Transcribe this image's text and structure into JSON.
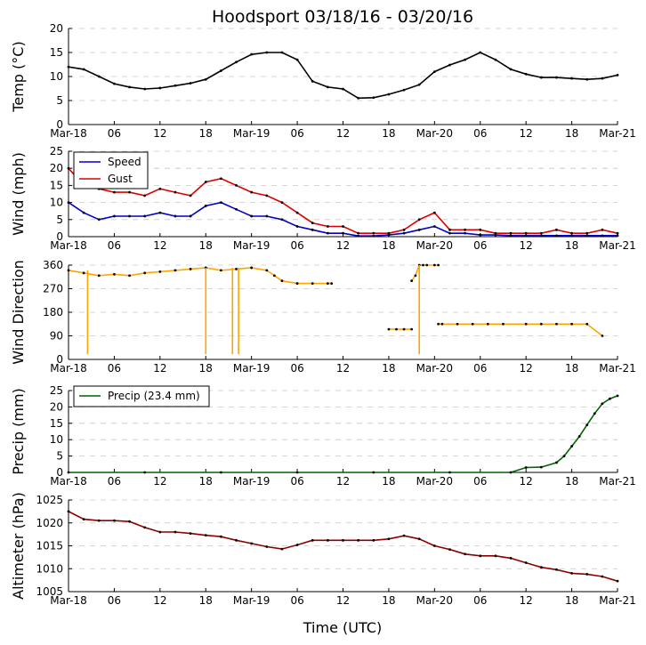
{
  "title": "Hoodsport 03/18/16 - 03/20/16",
  "xlabel": "Time (UTC)",
  "x_tick_labels": [
    "Mar-18",
    "06",
    "12",
    "18",
    "Mar-19",
    "06",
    "12",
    "18",
    "Mar-20",
    "06",
    "12",
    "18",
    "Mar-21"
  ],
  "chart_data": [
    {
      "type": "line",
      "name": "temp",
      "ylabel": "Temp (°C)",
      "ylim": [
        0,
        20
      ],
      "yticks": [
        0,
        5,
        10,
        15,
        20
      ],
      "color": "#000000",
      "x_hours": [
        0,
        2,
        4,
        6,
        8,
        10,
        12,
        14,
        16,
        18,
        20,
        22,
        24,
        26,
        28,
        30,
        32,
        34,
        36,
        38,
        40,
        42,
        44,
        46,
        48,
        50,
        52,
        54,
        56,
        58,
        60,
        62,
        64,
        66,
        68,
        70,
        72
      ],
      "series": [
        {
          "name": "Temp",
          "values": [
            12,
            11.5,
            10,
            8.5,
            7.8,
            7.4,
            7.6,
            8.1,
            8.6,
            9.4,
            11.2,
            13,
            14.6,
            15,
            15,
            13.5,
            9,
            7.8,
            7.4,
            5.5,
            5.6,
            6.3,
            7.2,
            8.3,
            11,
            12.4,
            13.5,
            15,
            13.5,
            11.5,
            10.5,
            9.8,
            9.8,
            9.6,
            9.4,
            9.6,
            10.3
          ]
        }
      ]
    },
    {
      "type": "line",
      "name": "wind",
      "ylabel": "Wind (mph)",
      "ylim": [
        0,
        25
      ],
      "yticks": [
        0,
        5,
        10,
        15,
        20,
        25
      ],
      "x_hours": [
        0,
        2,
        4,
        6,
        8,
        10,
        12,
        14,
        16,
        18,
        20,
        22,
        24,
        26,
        28,
        30,
        32,
        34,
        36,
        38,
        40,
        42,
        44,
        46,
        48,
        50,
        52,
        54,
        56,
        58,
        60,
        62,
        64,
        66,
        68,
        70,
        72
      ],
      "series": [
        {
          "name": "Speed",
          "color": "#0000cc",
          "values": [
            10,
            7,
            5,
            6,
            6,
            6,
            7,
            6,
            6,
            9,
            10,
            8,
            6,
            6,
            5,
            3,
            2,
            1,
            1,
            0.2,
            0.2,
            0.5,
            1,
            2,
            3,
            1,
            1,
            0.5,
            0.5,
            0.3,
            0.3,
            0.3,
            0.3,
            0.3,
            0.3,
            0.3,
            0.3
          ]
        },
        {
          "name": "Gust",
          "color": "#dd0000",
          "values": [
            20,
            15,
            14,
            13,
            13,
            12,
            14,
            13,
            12,
            16,
            17,
            15,
            13,
            12,
            10,
            7,
            4,
            3,
            3,
            1,
            1,
            1,
            2,
            5,
            7,
            2,
            2,
            2,
            1,
            1,
            1,
            1,
            2,
            1,
            1,
            2,
            1
          ]
        }
      ]
    },
    {
      "type": "line",
      "name": "wind_direction",
      "ylabel": "Wind Direction",
      "ylim": [
        0,
        360
      ],
      "yticks": [
        0,
        90,
        180,
        270,
        360
      ],
      "color": "#ffa500",
      "segments": [
        {
          "x": [
            0,
            2,
            4,
            6,
            8,
            10,
            12,
            14,
            16,
            18,
            20,
            22,
            24,
            26,
            27,
            28,
            30
          ],
          "y": [
            340,
            330,
            320,
            325,
            320,
            330,
            335,
            340,
            345,
            350,
            340,
            345,
            350,
            340,
            320,
            300,
            290
          ]
        },
        {
          "x": [
            30,
            32,
            34,
            34.5
          ],
          "y": [
            290,
            290,
            290,
            290
          ]
        },
        {
          "x": [
            42,
            43,
            44,
            45
          ],
          "y": [
            115,
            115,
            115,
            115
          ]
        },
        {
          "x": [
            45,
            45.5,
            46,
            46.5,
            47,
            48,
            48.5
          ],
          "y": [
            300,
            320,
            360,
            360,
            360,
            360,
            360
          ]
        },
        {
          "x": [
            48.5,
            49,
            51,
            53,
            55,
            57,
            60,
            62,
            64,
            66,
            68,
            70
          ],
          "y": [
            135,
            135,
            135,
            135,
            135,
            135,
            135,
            135,
            135,
            135,
            135,
            90
          ]
        }
      ],
      "spikes": [
        {
          "x": 2.5,
          "from": 340,
          "to": 20
        },
        {
          "x": 18,
          "from": 350,
          "to": 20
        },
        {
          "x": 21.5,
          "from": 350,
          "to": 20
        },
        {
          "x": 22.3,
          "from": 350,
          "to": 20
        },
        {
          "x": 46,
          "from": 360,
          "to": 20
        }
      ]
    },
    {
      "type": "line",
      "name": "precip",
      "ylabel": "Precip (mm)",
      "ylim": [
        0,
        25
      ],
      "yticks": [
        0,
        5,
        10,
        15,
        20,
        25
      ],
      "color": "#006400",
      "x_hours": [
        0,
        10,
        20,
        30,
        40,
        50,
        58,
        60,
        62,
        64,
        65,
        66,
        67,
        68,
        69,
        70,
        71,
        72
      ],
      "series": [
        {
          "name": "Precip (23.4 mm)",
          "values": [
            0,
            0,
            0,
            0,
            0,
            0,
            0,
            1.5,
            1.6,
            3,
            5,
            8,
            11,
            14.5,
            18,
            21,
            22.5,
            23.4
          ]
        }
      ]
    },
    {
      "type": "line",
      "name": "altimeter",
      "ylabel": "Altimeter (hPa)",
      "ylim": [
        1005,
        1025
      ],
      "yticks": [
        1005,
        1010,
        1015,
        1020,
        1025
      ],
      "color": "#8b0000",
      "x_hours": [
        0,
        2,
        4,
        6,
        8,
        10,
        12,
        14,
        16,
        18,
        20,
        22,
        24,
        26,
        28,
        30,
        32,
        34,
        36,
        38,
        40,
        42,
        44,
        46,
        48,
        50,
        52,
        54,
        56,
        58,
        60,
        62,
        64,
        66,
        68,
        70,
        72
      ],
      "series": [
        {
          "name": "Altimeter",
          "values": [
            1022.5,
            1020.8,
            1020.5,
            1020.5,
            1020.3,
            1019,
            1018,
            1018,
            1017.7,
            1017.3,
            1017,
            1016.2,
            1015.5,
            1014.8,
            1014.3,
            1015.2,
            1016.2,
            1016.2,
            1016.2,
            1016.2,
            1016.2,
            1016.5,
            1017.2,
            1016.5,
            1015,
            1014.2,
            1013.2,
            1012.8,
            1012.8,
            1012.3,
            1011.3,
            1010.3,
            1009.8,
            1009,
            1008.8,
            1008.3,
            1007.3
          ]
        }
      ]
    }
  ]
}
